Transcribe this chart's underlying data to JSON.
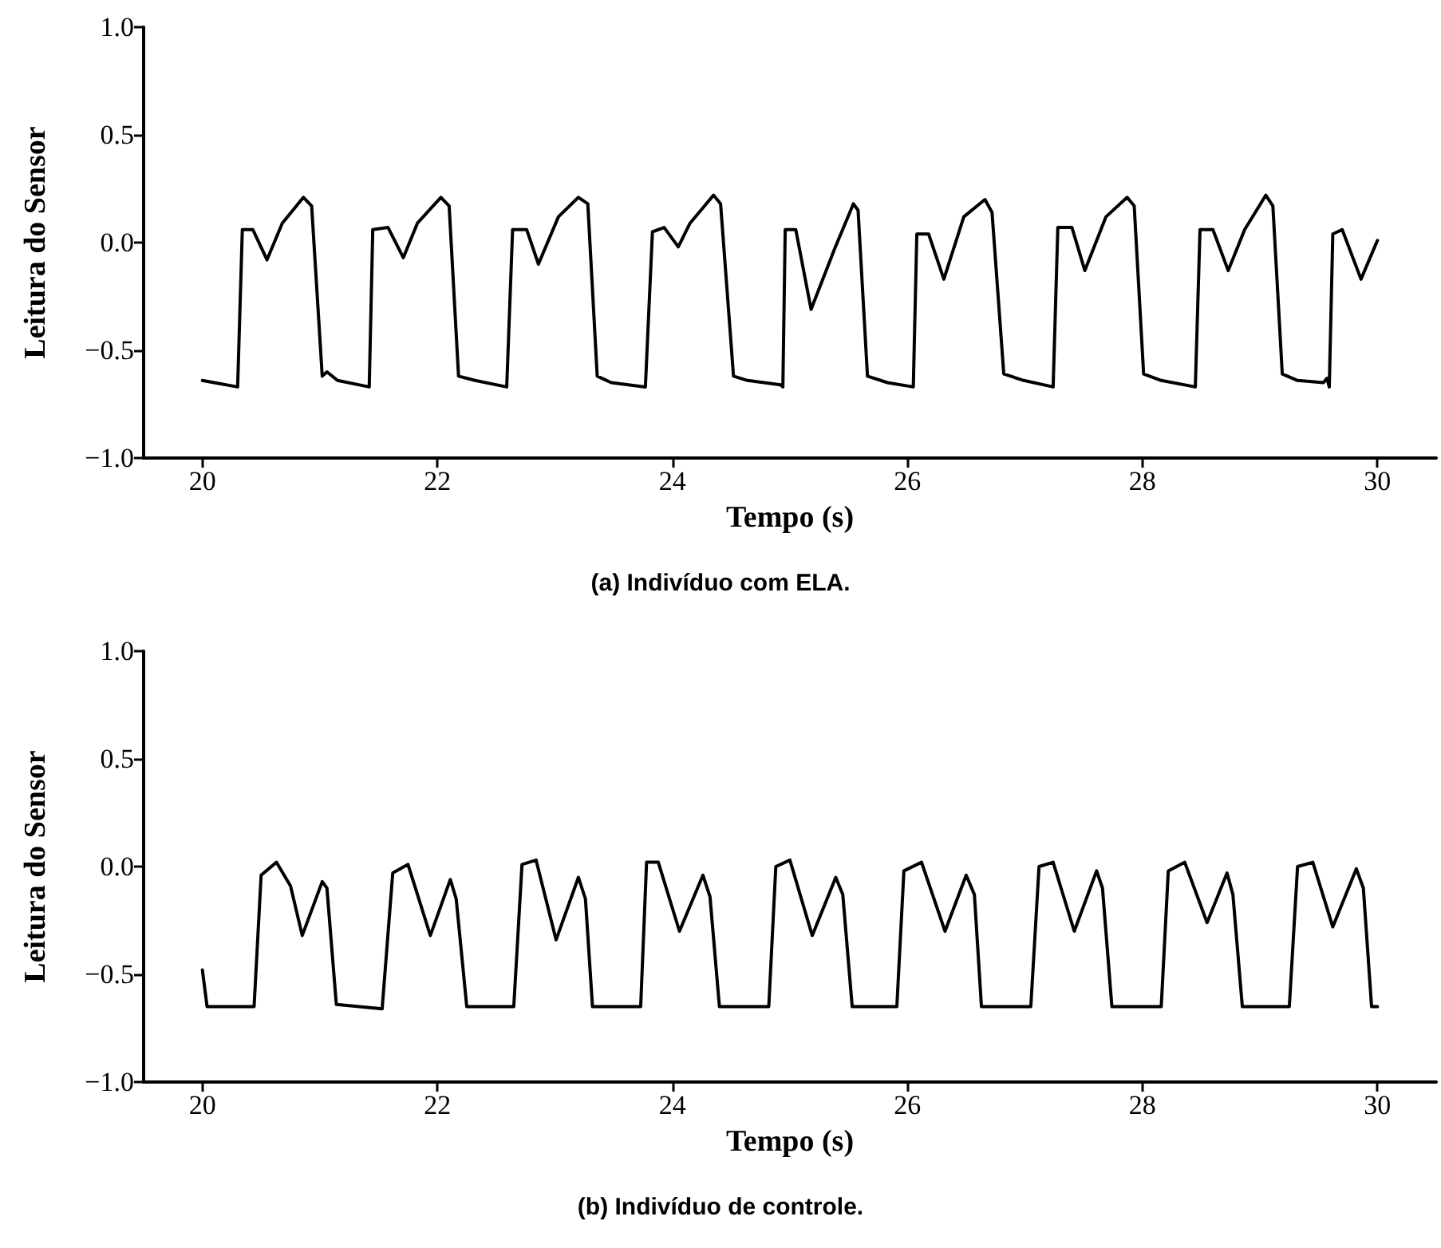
{
  "chart_data": [
    {
      "type": "line",
      "title": "(a) Indivíduo com ELA.",
      "xlabel": "Tempo (s)",
      "ylabel": "Leitura do Sensor",
      "color": "#000000",
      "x": [
        20.0,
        20.3,
        20.34,
        20.43,
        20.55,
        20.68,
        20.86,
        20.93,
        21.02,
        21.06,
        21.15,
        21.42,
        21.45,
        21.58,
        21.71,
        21.83,
        22.03,
        22.1,
        22.18,
        22.32,
        22.59,
        22.64,
        22.76,
        22.86,
        23.03,
        23.2,
        23.28,
        23.36,
        23.48,
        23.77,
        23.83,
        23.93,
        24.05,
        24.15,
        24.35,
        24.41,
        24.52,
        24.64,
        24.92,
        24.94,
        24.96,
        25.05,
        25.18,
        25.38,
        25.54,
        25.58,
        25.66,
        25.83,
        26.05,
        26.08,
        26.18,
        26.31,
        26.48,
        26.66,
        26.72,
        26.82,
        26.99,
        27.24,
        27.28,
        27.4,
        27.51,
        27.69,
        27.87,
        27.93,
        28.01,
        28.16,
        28.45,
        28.49,
        28.6,
        28.73,
        28.87,
        29.05,
        29.11,
        29.19,
        29.32,
        29.54,
        29.57,
        29.59,
        29.62,
        29.7,
        29.86,
        30.0
      ],
      "values": [
        -0.64,
        -0.67,
        0.06,
        0.06,
        -0.08,
        0.09,
        0.21,
        0.17,
        -0.62,
        -0.6,
        -0.64,
        -0.67,
        0.06,
        0.07,
        -0.07,
        0.09,
        0.21,
        0.17,
        -0.62,
        -0.64,
        -0.67,
        0.06,
        0.06,
        -0.1,
        0.12,
        0.21,
        0.18,
        -0.62,
        -0.65,
        -0.67,
        0.05,
        0.07,
        -0.02,
        0.09,
        0.22,
        0.18,
        -0.62,
        -0.64,
        -0.66,
        -0.67,
        0.06,
        0.06,
        -0.31,
        -0.03,
        0.18,
        0.15,
        -0.62,
        -0.65,
        -0.67,
        0.04,
        0.04,
        -0.17,
        0.12,
        0.2,
        0.14,
        -0.61,
        -0.64,
        -0.67,
        0.07,
        0.07,
        -0.13,
        0.12,
        0.21,
        0.17,
        -0.61,
        -0.64,
        -0.67,
        0.06,
        0.06,
        -0.13,
        0.06,
        0.22,
        0.17,
        -0.61,
        -0.64,
        -0.65,
        -0.63,
        -0.67,
        0.04,
        0.06,
        -0.17,
        0.01
      ],
      "xlim": [
        19.5,
        30.5
      ],
      "ylim": [
        -1,
        1
      ],
      "xticks": [
        20,
        22,
        24,
        26,
        28,
        30
      ],
      "yticks": [
        {
          "value": -1,
          "label": "−1.0"
        },
        {
          "value": -0.5,
          "label": "−0.5"
        },
        {
          "value": 0,
          "label": "0.0"
        },
        {
          "value": 0.5,
          "label": "0.5"
        },
        {
          "value": 1,
          "label": "1.0"
        }
      ]
    },
    {
      "type": "line",
      "title": "(b) Indivíduo de controle.",
      "xlabel": "Tempo (s)",
      "ylabel": "Leitura do Sensor",
      "color": "#000000",
      "x": [
        20.0,
        20.04,
        20.44,
        20.5,
        20.63,
        20.75,
        20.85,
        21.02,
        21.06,
        21.14,
        21.53,
        21.62,
        21.75,
        21.94,
        22.11,
        22.16,
        22.25,
        22.65,
        22.72,
        22.84,
        23.01,
        23.2,
        23.26,
        23.32,
        23.73,
        23.78,
        23.88,
        24.06,
        24.26,
        24.32,
        24.4,
        24.82,
        24.88,
        25.0,
        25.19,
        25.39,
        25.45,
        25.53,
        25.91,
        25.97,
        26.12,
        26.32,
        26.5,
        26.57,
        26.63,
        27.05,
        27.12,
        27.24,
        27.42,
        27.61,
        27.66,
        27.74,
        28.16,
        28.22,
        28.36,
        28.55,
        28.72,
        28.77,
        28.85,
        29.25,
        29.32,
        29.45,
        29.62,
        29.82,
        29.88,
        29.95,
        30.0
      ],
      "values": [
        -0.48,
        -0.65,
        -0.65,
        -0.04,
        0.02,
        -0.09,
        -0.32,
        -0.07,
        -0.1,
        -0.64,
        -0.66,
        -0.03,
        0.01,
        -0.32,
        -0.06,
        -0.15,
        -0.65,
        -0.65,
        0.01,
        0.03,
        -0.34,
        -0.05,
        -0.15,
        -0.65,
        -0.65,
        0.02,
        0.02,
        -0.3,
        -0.04,
        -0.14,
        -0.65,
        -0.65,
        0.0,
        0.03,
        -0.32,
        -0.05,
        -0.13,
        -0.65,
        -0.65,
        -0.02,
        0.02,
        -0.3,
        -0.04,
        -0.13,
        -0.65,
        -0.65,
        0.0,
        0.02,
        -0.3,
        -0.02,
        -0.1,
        -0.65,
        -0.65,
        -0.02,
        0.02,
        -0.26,
        -0.03,
        -0.13,
        -0.65,
        -0.65,
        0.0,
        0.02,
        -0.28,
        -0.01,
        -0.1,
        -0.65,
        -0.65
      ],
      "xlim": [
        19.5,
        30.5
      ],
      "ylim": [
        -1,
        1
      ],
      "xticks": [
        20,
        22,
        24,
        26,
        28,
        30
      ],
      "yticks": [
        {
          "value": -1,
          "label": "−1.0"
        },
        {
          "value": -0.5,
          "label": "−0.5"
        },
        {
          "value": 0,
          "label": "0.0"
        },
        {
          "value": 0.5,
          "label": "0.5"
        },
        {
          "value": 1,
          "label": "1.0"
        }
      ]
    }
  ]
}
